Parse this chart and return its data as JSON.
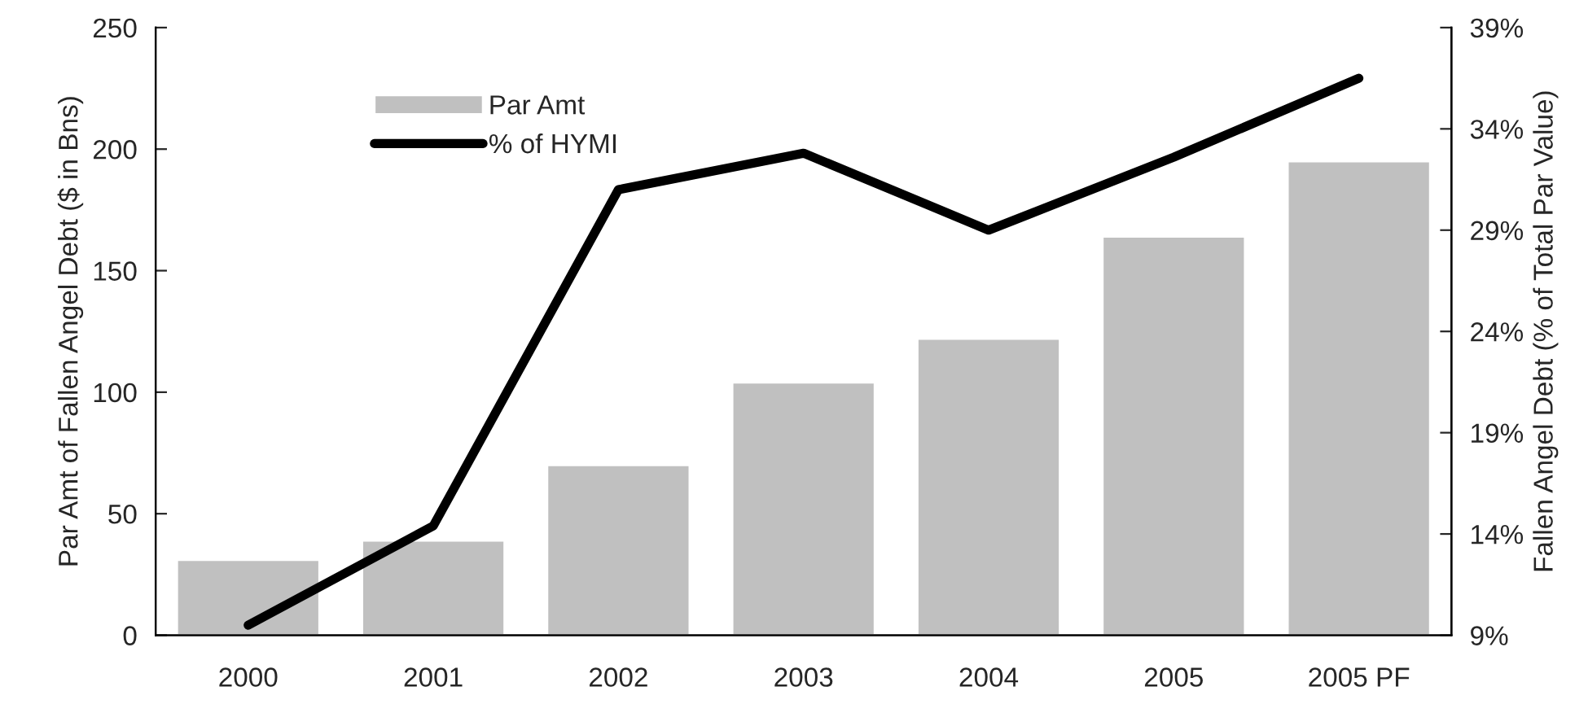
{
  "chart_data": {
    "type": "bar",
    "ylabel": "Par Amt of Fallen Angel Debt ($ in Bns)",
    "y2label": "Fallen Angel Debt (% of Total Par Value)",
    "categories": [
      "2000",
      "2001",
      "2002",
      "2003",
      "2004",
      "2005",
      "2005 PF"
    ],
    "series": [
      {
        "name": "Par Amt",
        "color": "#c0c0c0",
        "values": [
          31,
          39,
          70,
          104,
          122,
          164,
          195
        ]
      },
      {
        "name": "% of HYMI",
        "type": "line",
        "axis": "y2",
        "color": "#000000",
        "values": [
          9.5,
          14.4,
          31.0,
          32.8,
          29.0,
          32.6,
          36.5
        ]
      }
    ],
    "ylim": [
      0,
      250
    ],
    "yticks": [
      0,
      50,
      100,
      150,
      200,
      250
    ],
    "y2lim": [
      9,
      39
    ],
    "y2ticks": [
      {
        "value": 9,
        "label": "9%"
      },
      {
        "value": 14,
        "label": "14%"
      },
      {
        "value": 19,
        "label": "19%"
      },
      {
        "value": 24,
        "label": "24%"
      },
      {
        "value": 29,
        "label": "29%"
      },
      {
        "value": 34,
        "label": "34%"
      },
      {
        "value": 39,
        "label": "39%"
      }
    ],
    "legend": "top left",
    "grid": false,
    "marker": "none",
    "line_style": "solid"
  }
}
